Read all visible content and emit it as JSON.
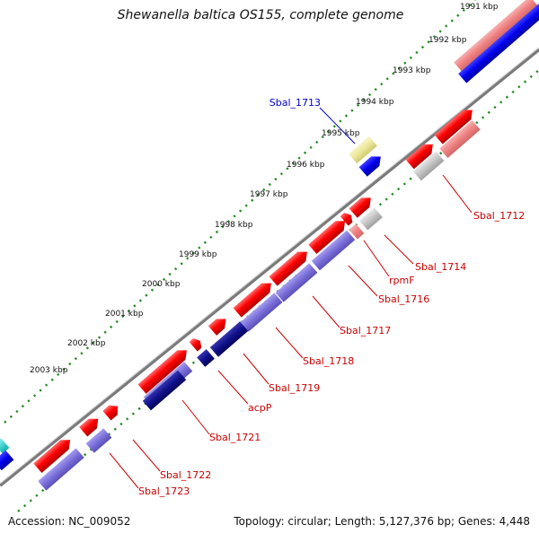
{
  "title": "Shewanella baltica OS155, complete genome",
  "footer": {
    "accession": "Accession: NC_009052",
    "summary": "Topology: circular; Length: 5,127,376 bp; Genes: 4,448"
  },
  "ticks": [
    "1991 kbp",
    "1992 kbp",
    "1993 kbp",
    "1994 kbp",
    "1995 kbp",
    "1996 kbp",
    "1997 kbp",
    "1998 kbp",
    "1999 kbp",
    "2000 kbp",
    "2001 kbp",
    "2002 kbp",
    "2003 kbp"
  ],
  "gene_labels": {
    "sbal_1713": "Sbal_1713",
    "sbal_1712": "Sbal_1712",
    "sbal_1714": "Sbal_1714",
    "rpmf": "rpmF",
    "sbal_1716": "Sbal_1716",
    "sbal_1717": "Sbal_1717",
    "sbal_1718": "Sbal_1718",
    "sbal_1719": "Sbal_1719",
    "acpp": "acpP",
    "sbal_1721": "Sbal_1721",
    "sbal_1722": "Sbal_1722",
    "sbal_1723": "Sbal_1723"
  },
  "colors": {
    "cds_forward": "#ee0000",
    "cds_forward_light": "#f08a8a",
    "cds_reverse": "#0000dd",
    "cds_purple": "#7b6fd6",
    "cds_navy": "#0c0c80",
    "grey_feature": "#bdbdbd",
    "yellow_feature": "#ece9a0",
    "cyan_feature": "#22cccc",
    "backbone": "#808080",
    "tick_green": "#1f8a1f",
    "label_red": "#cc0000",
    "label_blue": "#0000cc"
  }
}
